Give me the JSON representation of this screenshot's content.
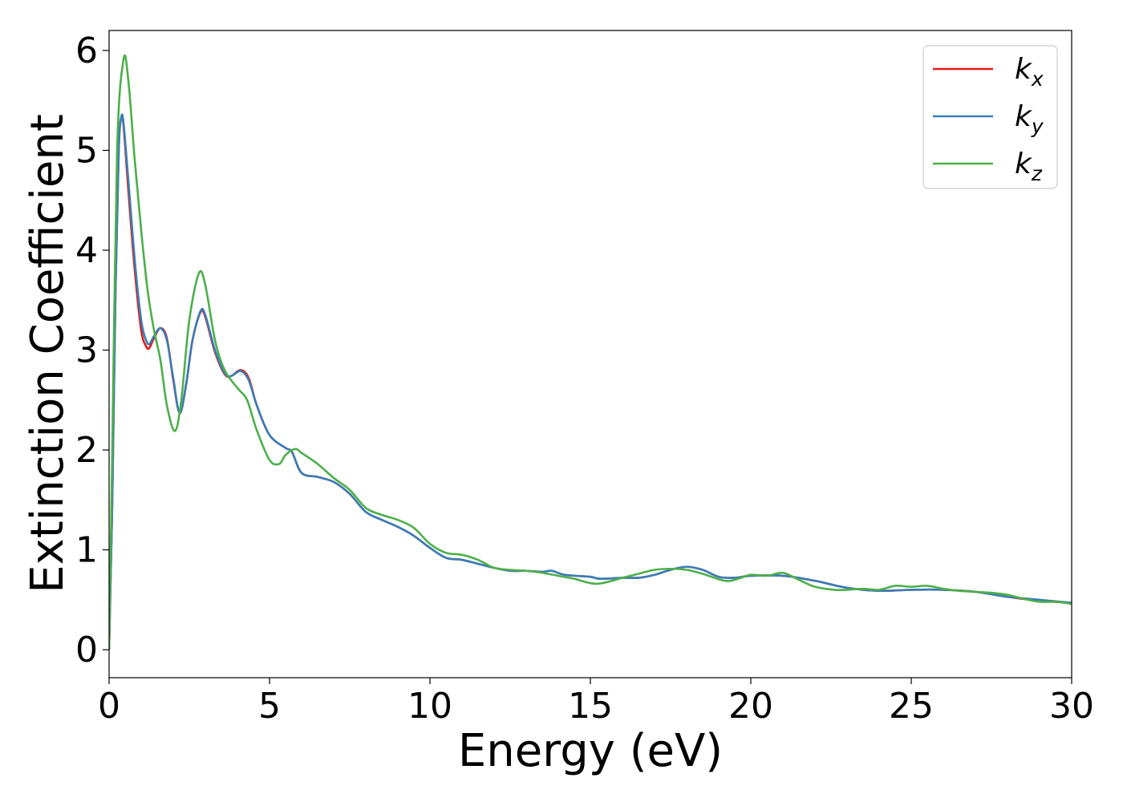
{
  "chart_data": {
    "type": "line",
    "title": "",
    "xlabel": "Energy (eV)",
    "ylabel": "Extinction Coefficient",
    "xlim": [
      0,
      30
    ],
    "ylim": [
      -0.28,
      6.2
    ],
    "xticks": [
      0,
      5,
      10,
      15,
      20,
      25,
      30
    ],
    "yticks": [
      0,
      1,
      2,
      3,
      4,
      5,
      6
    ],
    "grid": false,
    "legend_position": "top-right",
    "series": [
      {
        "name": "k",
        "subscript": "x",
        "color": "#e41a1c",
        "points": [
          [
            0,
            0
          ],
          [
            0.1,
            1.5
          ],
          [
            0.2,
            3.6
          ],
          [
            0.3,
            5.0
          ],
          [
            0.38,
            5.33
          ],
          [
            0.45,
            5.25
          ],
          [
            0.6,
            4.6
          ],
          [
            0.8,
            3.8
          ],
          [
            1.0,
            3.2
          ],
          [
            1.15,
            3.04
          ],
          [
            1.25,
            3.02
          ],
          [
            1.4,
            3.12
          ],
          [
            1.6,
            3.22
          ],
          [
            1.8,
            3.12
          ],
          [
            2.0,
            2.7
          ],
          [
            2.2,
            2.37
          ],
          [
            2.4,
            2.65
          ],
          [
            2.6,
            3.1
          ],
          [
            2.85,
            3.38
          ],
          [
            3.0,
            3.33
          ],
          [
            3.3,
            2.98
          ],
          [
            3.6,
            2.76
          ],
          [
            3.8,
            2.74
          ],
          [
            4.1,
            2.8
          ],
          [
            4.35,
            2.72
          ],
          [
            4.6,
            2.45
          ],
          [
            5.0,
            2.15
          ],
          [
            5.5,
            2.02
          ],
          [
            5.7,
            1.98
          ],
          [
            6.0,
            1.77
          ],
          [
            6.5,
            1.73
          ],
          [
            7.0,
            1.68
          ],
          [
            7.5,
            1.56
          ],
          [
            8.0,
            1.38
          ],
          [
            8.5,
            1.3
          ],
          [
            9.0,
            1.23
          ],
          [
            9.5,
            1.14
          ],
          [
            10.0,
            1.02
          ],
          [
            10.5,
            0.92
          ],
          [
            11.0,
            0.9
          ],
          [
            11.5,
            0.86
          ],
          [
            12.0,
            0.82
          ],
          [
            12.5,
            0.79
          ],
          [
            13.0,
            0.79
          ],
          [
            13.5,
            0.78
          ],
          [
            13.8,
            0.79
          ],
          [
            14.2,
            0.75
          ],
          [
            15.0,
            0.73
          ],
          [
            15.3,
            0.71
          ],
          [
            16.0,
            0.72
          ],
          [
            16.5,
            0.72
          ],
          [
            17.0,
            0.75
          ],
          [
            17.5,
            0.8
          ],
          [
            18.0,
            0.83
          ],
          [
            18.5,
            0.8
          ],
          [
            19.0,
            0.73
          ],
          [
            19.5,
            0.72
          ],
          [
            20.0,
            0.74
          ],
          [
            21.0,
            0.74
          ],
          [
            22.0,
            0.69
          ],
          [
            23.0,
            0.62
          ],
          [
            24.0,
            0.59
          ],
          [
            25.0,
            0.6
          ],
          [
            26.0,
            0.6
          ],
          [
            27.0,
            0.58
          ],
          [
            28.0,
            0.53
          ],
          [
            29.0,
            0.49
          ],
          [
            30.0,
            0.47
          ]
        ]
      },
      {
        "name": "k",
        "subscript": "y",
        "color": "#377eb8",
        "points": [
          [
            0,
            0
          ],
          [
            0.1,
            1.5
          ],
          [
            0.2,
            3.6
          ],
          [
            0.3,
            5.0
          ],
          [
            0.38,
            5.33
          ],
          [
            0.45,
            5.27
          ],
          [
            0.6,
            4.7
          ],
          [
            0.8,
            3.9
          ],
          [
            1.0,
            3.3
          ],
          [
            1.15,
            3.1
          ],
          [
            1.25,
            3.06
          ],
          [
            1.4,
            3.14
          ],
          [
            1.6,
            3.22
          ],
          [
            1.8,
            3.1
          ],
          [
            2.0,
            2.72
          ],
          [
            2.2,
            2.37
          ],
          [
            2.4,
            2.66
          ],
          [
            2.6,
            3.1
          ],
          [
            2.85,
            3.39
          ],
          [
            3.0,
            3.35
          ],
          [
            3.3,
            3.0
          ],
          [
            3.6,
            2.77
          ],
          [
            3.8,
            2.74
          ],
          [
            4.1,
            2.79
          ],
          [
            4.35,
            2.7
          ],
          [
            4.6,
            2.45
          ],
          [
            5.0,
            2.15
          ],
          [
            5.5,
            2.02
          ],
          [
            5.7,
            1.98
          ],
          [
            6.0,
            1.77
          ],
          [
            6.5,
            1.73
          ],
          [
            7.0,
            1.68
          ],
          [
            7.5,
            1.56
          ],
          [
            8.0,
            1.38
          ],
          [
            8.5,
            1.3
          ],
          [
            9.0,
            1.23
          ],
          [
            9.5,
            1.14
          ],
          [
            10.0,
            1.02
          ],
          [
            10.5,
            0.92
          ],
          [
            11.0,
            0.9
          ],
          [
            11.5,
            0.86
          ],
          [
            12.0,
            0.82
          ],
          [
            12.5,
            0.79
          ],
          [
            13.0,
            0.79
          ],
          [
            13.5,
            0.78
          ],
          [
            13.8,
            0.79
          ],
          [
            14.2,
            0.75
          ],
          [
            15.0,
            0.73
          ],
          [
            15.3,
            0.71
          ],
          [
            16.0,
            0.72
          ],
          [
            16.5,
            0.72
          ],
          [
            17.0,
            0.75
          ],
          [
            17.5,
            0.8
          ],
          [
            18.0,
            0.83
          ],
          [
            18.5,
            0.8
          ],
          [
            19.0,
            0.73
          ],
          [
            19.5,
            0.72
          ],
          [
            20.0,
            0.74
          ],
          [
            21.0,
            0.74
          ],
          [
            22.0,
            0.69
          ],
          [
            23.0,
            0.62
          ],
          [
            24.0,
            0.59
          ],
          [
            25.0,
            0.6
          ],
          [
            26.0,
            0.6
          ],
          [
            27.0,
            0.58
          ],
          [
            28.0,
            0.53
          ],
          [
            29.0,
            0.5
          ],
          [
            30.0,
            0.47
          ]
        ]
      },
      {
        "name": "k",
        "subscript": "z",
        "color": "#4daf4a",
        "points": [
          [
            0,
            0
          ],
          [
            0.1,
            2.0
          ],
          [
            0.25,
            5.0
          ],
          [
            0.45,
            5.91
          ],
          [
            0.6,
            5.7
          ],
          [
            0.8,
            4.9
          ],
          [
            1.0,
            4.2
          ],
          [
            1.2,
            3.6
          ],
          [
            1.4,
            3.2
          ],
          [
            1.6,
            2.9
          ],
          [
            1.8,
            2.45
          ],
          [
            2.05,
            2.19
          ],
          [
            2.25,
            2.5
          ],
          [
            2.5,
            3.3
          ],
          [
            2.8,
            3.77
          ],
          [
            3.0,
            3.65
          ],
          [
            3.3,
            3.1
          ],
          [
            3.6,
            2.8
          ],
          [
            4.0,
            2.62
          ],
          [
            4.3,
            2.5
          ],
          [
            4.6,
            2.2
          ],
          [
            5.0,
            1.9
          ],
          [
            5.3,
            1.86
          ],
          [
            5.5,
            1.95
          ],
          [
            5.8,
            2.01
          ],
          [
            6.0,
            1.97
          ],
          [
            6.5,
            1.86
          ],
          [
            7.0,
            1.72
          ],
          [
            7.5,
            1.6
          ],
          [
            8.0,
            1.42
          ],
          [
            8.5,
            1.35
          ],
          [
            9.0,
            1.3
          ],
          [
            9.5,
            1.22
          ],
          [
            10.0,
            1.06
          ],
          [
            10.5,
            0.97
          ],
          [
            11.0,
            0.95
          ],
          [
            11.5,
            0.9
          ],
          [
            12.0,
            0.82
          ],
          [
            12.5,
            0.8
          ],
          [
            13.0,
            0.79
          ],
          [
            13.5,
            0.77
          ],
          [
            14.0,
            0.74
          ],
          [
            14.5,
            0.71
          ],
          [
            15.2,
            0.66
          ],
          [
            16.0,
            0.72
          ],
          [
            16.5,
            0.76
          ],
          [
            17.0,
            0.8
          ],
          [
            17.5,
            0.81
          ],
          [
            18.0,
            0.8
          ],
          [
            18.5,
            0.76
          ],
          [
            19.2,
            0.69
          ],
          [
            19.6,
            0.71
          ],
          [
            20.0,
            0.75
          ],
          [
            20.5,
            0.74
          ],
          [
            21.0,
            0.77
          ],
          [
            21.5,
            0.7
          ],
          [
            22.0,
            0.63
          ],
          [
            22.6,
            0.6
          ],
          [
            23.0,
            0.6
          ],
          [
            23.5,
            0.61
          ],
          [
            24.0,
            0.6
          ],
          [
            24.5,
            0.64
          ],
          [
            25.0,
            0.63
          ],
          [
            25.5,
            0.64
          ],
          [
            26.0,
            0.61
          ],
          [
            26.5,
            0.59
          ],
          [
            27.0,
            0.58
          ],
          [
            27.5,
            0.57
          ],
          [
            28.0,
            0.55
          ],
          [
            28.5,
            0.51
          ],
          [
            29.0,
            0.48
          ],
          [
            29.5,
            0.48
          ],
          [
            30.0,
            0.46
          ]
        ]
      }
    ]
  }
}
